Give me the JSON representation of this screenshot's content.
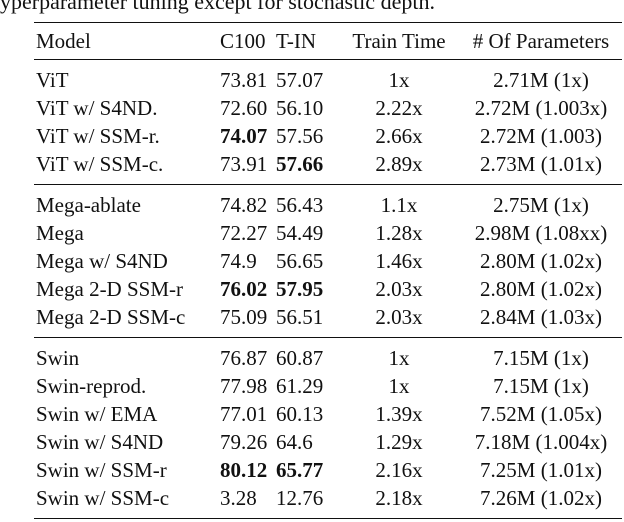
{
  "header": {
    "caption": "yperparameter tuning except for stochastic depth."
  },
  "table": {
    "columns": [
      "Model",
      "C100",
      "T-IN",
      "Train Time",
      "# Of Parameters"
    ],
    "groups": [
      [
        [
          "ViT",
          "73.81",
          "57.07",
          "1x",
          "2.71M (1x)"
        ],
        [
          "ViT w/ S4ND.",
          "72.60",
          "56.10",
          "2.22x",
          "2.72M (1.003x)"
        ],
        [
          "ViT w/ SSM-r.",
          "74.07",
          "57.56",
          "2.66x",
          "2.72M (1.003)"
        ],
        [
          "ViT w/ SSM-c.",
          "73.91",
          "57.66",
          "2.89x",
          "2.73M (1.01x)"
        ]
      ],
      [
        [
          "Mega-ablate",
          "74.82",
          "56.43",
          "1.1x",
          "2.75M (1x)"
        ],
        [
          "Mega",
          "72.27",
          "54.49",
          "1.28x",
          "2.98M (1.08xx)"
        ],
        [
          "Mega w/ S4ND",
          "74.9",
          "56.65",
          "1.46x",
          "2.80M (1.02x)"
        ],
        [
          "Mega 2-D SSM-r",
          "76.02",
          "57.95",
          "2.03x",
          "2.80M (1.02x)"
        ],
        [
          "Mega 2-D SSM-c",
          "75.09",
          "56.51",
          "2.03x",
          "2.84M (1.03x)"
        ]
      ],
      [
        [
          "Swin",
          "76.87",
          "60.87",
          "1x",
          "7.15M (1x)"
        ],
        [
          "Swin-reprod.",
          "77.98",
          "61.29",
          "1x",
          "7.15M (1x)"
        ],
        [
          "Swin w/ EMA",
          "77.01",
          "60.13",
          "1.39x",
          "7.52M (1.05x)"
        ],
        [
          "Swin w/ S4ND",
          "79.26",
          "64.6",
          "1.29x",
          "7.18M (1.004x)"
        ],
        [
          "Swin w/ SSM-r",
          "80.12",
          "65.77",
          "2.16x",
          "7.25M (1.01x)"
        ],
        [
          "Swin w/ SSM-c",
          "3.28",
          "12.76",
          "2.18x",
          "7.26M (1.02x)"
        ]
      ]
    ]
  }
}
